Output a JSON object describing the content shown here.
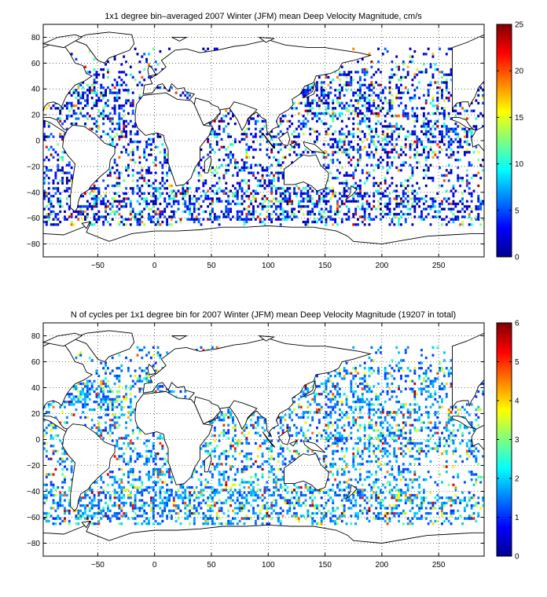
{
  "chart_data": [
    {
      "type": "heatmap",
      "title": "1x1 degree bin–averaged 2007 Winter (JFM) mean Deep Velocity Magnitude, cm/s",
      "xlabel": "",
      "ylabel": "",
      "xlim": [
        -98,
        290
      ],
      "ylim": [
        -90,
        90
      ],
      "x_ticks": [
        -50,
        0,
        50,
        100,
        150,
        200,
        250
      ],
      "y_ticks": [
        80,
        60,
        40,
        20,
        0,
        -20,
        -40,
        -60,
        -80
      ],
      "x_tick_labels": [
        "−50",
        "0",
        "50",
        "100",
        "150",
        "200",
        "250"
      ],
      "y_tick_labels": [
        "80",
        "60",
        "40",
        "20",
        "0",
        "−20",
        "−40",
        "−60",
        "−80"
      ],
      "grid": "dotted",
      "colorbar": {
        "min": 0,
        "max": 25,
        "ticks": [
          0,
          5,
          10,
          15,
          20,
          25
        ],
        "labels": [
          "0",
          "5",
          "10",
          "15",
          "20",
          "25"
        ],
        "colormap": "jet"
      },
      "value_profile": {
        "typical": [
          0,
          6
        ],
        "moderate": [
          8,
          14
        ],
        "high": [
          15,
          25
        ]
      }
    },
    {
      "type": "heatmap",
      "title": "N of cycles per 1x1 degree bin for 2007 Winter (JFM) mean Deep Velocity Magnitude (19207 in total)",
      "xlabel": "",
      "ylabel": "",
      "xlim": [
        -98,
        290
      ],
      "ylim": [
        -90,
        90
      ],
      "x_ticks": [
        -50,
        0,
        50,
        100,
        150,
        200,
        250
      ],
      "y_ticks": [
        80,
        60,
        40,
        20,
        0,
        -20,
        -40,
        -60,
        -80
      ],
      "x_tick_labels": [
        "−50",
        "0",
        "50",
        "100",
        "150",
        "200",
        "250"
      ],
      "y_tick_labels": [
        "80",
        "60",
        "40",
        "20",
        "0",
        "−20",
        "−40",
        "−60",
        "−80"
      ],
      "grid": "dotted",
      "colorbar": {
        "min": 0,
        "max": 6,
        "ticks": [
          0,
          1,
          2,
          3,
          4,
          5,
          6
        ],
        "labels": [
          "0",
          "1",
          "2",
          "3",
          "4",
          "5",
          "6"
        ],
        "colormap": "jet"
      },
      "value_profile": {
        "typical": [
          1,
          2
        ],
        "moderate": [
          2,
          4
        ],
        "high": [
          4,
          6
        ]
      }
    }
  ]
}
